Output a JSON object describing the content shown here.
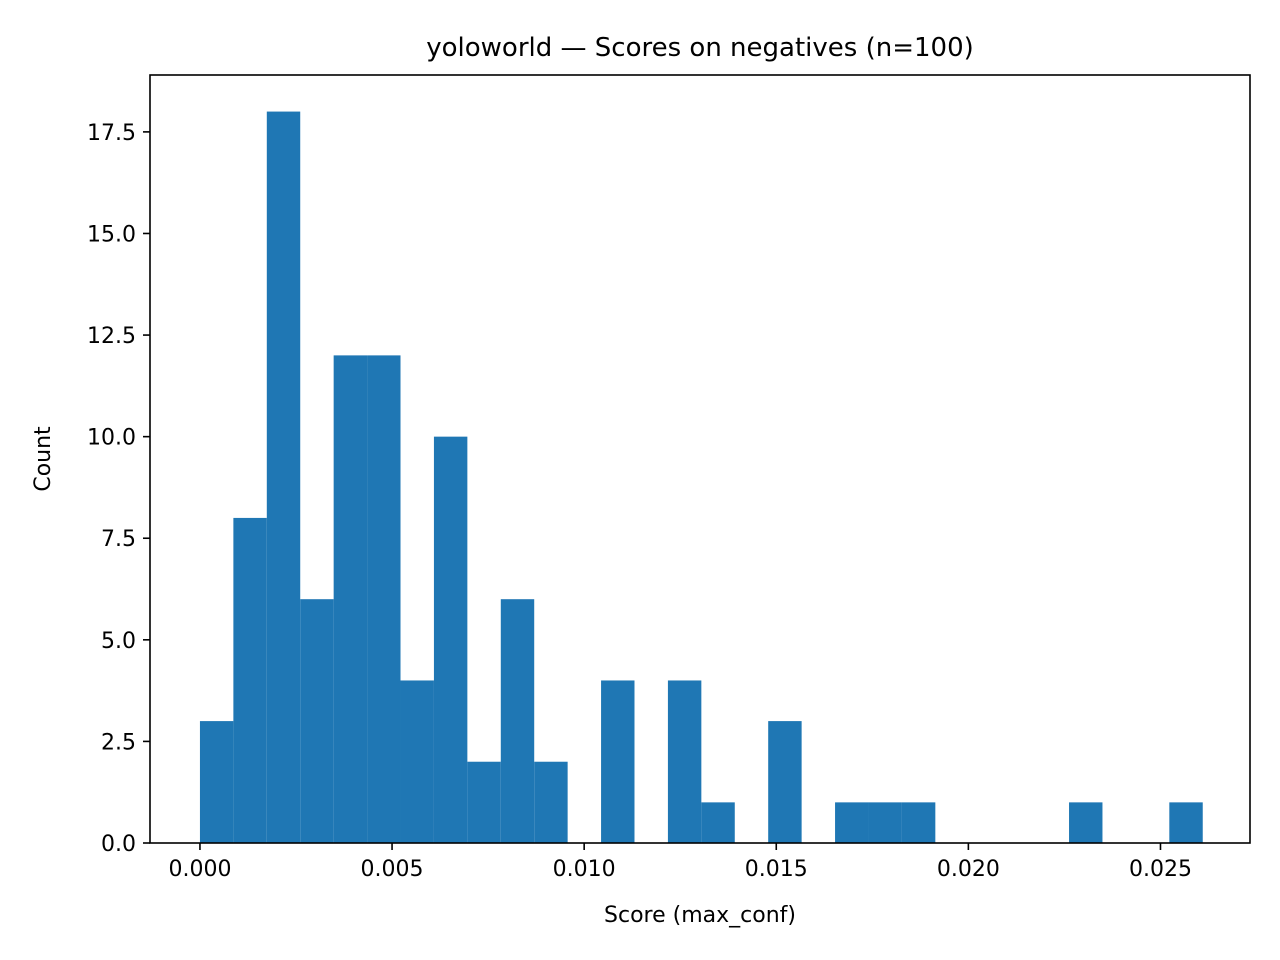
{
  "chart_data": {
    "type": "histogram",
    "title": "yoloworld — Scores on negatives (n=100)",
    "xlabel": "Score (max_conf)",
    "ylabel": "Count",
    "xlim": [
      -0.0013,
      0.02733
    ],
    "ylim": [
      0,
      18.9
    ],
    "bin_width": 0.00087,
    "bins": [
      {
        "x0": 0.0,
        "count": 3
      },
      {
        "x0": 0.00087,
        "count": 8
      },
      {
        "x0": 0.00174,
        "count": 18
      },
      {
        "x0": 0.00261,
        "count": 6
      },
      {
        "x0": 0.00348,
        "count": 12
      },
      {
        "x0": 0.00435,
        "count": 12
      },
      {
        "x0": 0.00522,
        "count": 4
      },
      {
        "x0": 0.00609,
        "count": 10
      },
      {
        "x0": 0.00696,
        "count": 2
      },
      {
        "x0": 0.00783,
        "count": 6
      },
      {
        "x0": 0.0087,
        "count": 2
      },
      {
        "x0": 0.00957,
        "count": 0
      },
      {
        "x0": 0.01044,
        "count": 4
      },
      {
        "x0": 0.01131,
        "count": 0
      },
      {
        "x0": 0.01218,
        "count": 4
      },
      {
        "x0": 0.01305,
        "count": 1
      },
      {
        "x0": 0.01392,
        "count": 0
      },
      {
        "x0": 0.01479,
        "count": 3
      },
      {
        "x0": 0.01566,
        "count": 0
      },
      {
        "x0": 0.01653,
        "count": 1
      },
      {
        "x0": 0.0174,
        "count": 1
      },
      {
        "x0": 0.01827,
        "count": 1
      },
      {
        "x0": 0.01914,
        "count": 0
      },
      {
        "x0": 0.02001,
        "count": 0
      },
      {
        "x0": 0.02088,
        "count": 0
      },
      {
        "x0": 0.02175,
        "count": 0
      },
      {
        "x0": 0.02262,
        "count": 1
      },
      {
        "x0": 0.02349,
        "count": 0
      },
      {
        "x0": 0.02436,
        "count": 0
      },
      {
        "x0": 0.02523,
        "count": 1
      }
    ],
    "x_ticks": [
      {
        "value": 0.0,
        "label": "0.000"
      },
      {
        "value": 0.005,
        "label": "0.005"
      },
      {
        "value": 0.01,
        "label": "0.010"
      },
      {
        "value": 0.015,
        "label": "0.015"
      },
      {
        "value": 0.02,
        "label": "0.020"
      },
      {
        "value": 0.025,
        "label": "0.025"
      }
    ],
    "y_ticks": [
      {
        "value": 0.0,
        "label": "0.0"
      },
      {
        "value": 2.5,
        "label": "2.5"
      },
      {
        "value": 5.0,
        "label": "5.0"
      },
      {
        "value": 7.5,
        "label": "7.5"
      },
      {
        "value": 10.0,
        "label": "10.0"
      },
      {
        "value": 12.5,
        "label": "12.5"
      },
      {
        "value": 15.0,
        "label": "15.0"
      },
      {
        "value": 17.5,
        "label": "17.5"
      }
    ],
    "bar_color": "#1f77b4",
    "grid": false,
    "legend": "none"
  }
}
